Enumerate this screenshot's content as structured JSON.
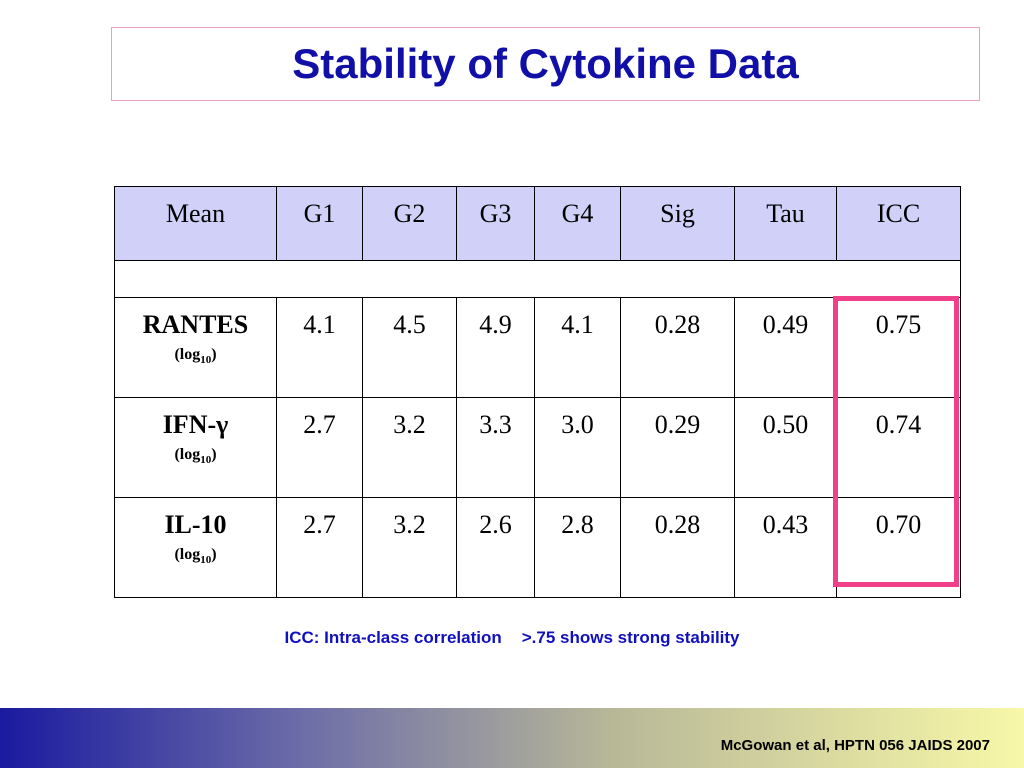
{
  "title": "Stability of Cytokine Data",
  "table": {
    "headers": [
      "Mean",
      "G1",
      "G2",
      "G3",
      "G4",
      "Sig",
      "Tau",
      "ICC"
    ],
    "rows": [
      {
        "name": "RANTES",
        "unit_prefix": "(log",
        "unit_sub": "10",
        "unit_suffix": ")",
        "values": [
          "4.1",
          "4.5",
          "4.9",
          "4.1",
          "0.28",
          "0.49",
          "0.75"
        ]
      },
      {
        "name": "IFN-γ",
        "unit_prefix": "(log",
        "unit_sub": "10",
        "unit_suffix": ")",
        "values": [
          "2.7",
          "3.2",
          "3.3",
          "3.0",
          "0.29",
          "0.50",
          "0.74"
        ]
      },
      {
        "name": "IL-10",
        "unit_prefix": "(log",
        "unit_sub": "10",
        "unit_suffix": ")",
        "values": [
          "2.7",
          "3.2",
          "2.6",
          "2.8",
          "0.28",
          "0.43",
          "0.70"
        ]
      }
    ]
  },
  "note": {
    "part1": "ICC: Intra-class correlation",
    "part2": ">.75 shows strong stability"
  },
  "citation": "McGowan et al, HPTN 056  JAIDS 2007",
  "colors": {
    "title": "#1010a8",
    "header_bg": "#d0d0f8",
    "highlight": "#f0408a",
    "note": "#1010c0"
  }
}
